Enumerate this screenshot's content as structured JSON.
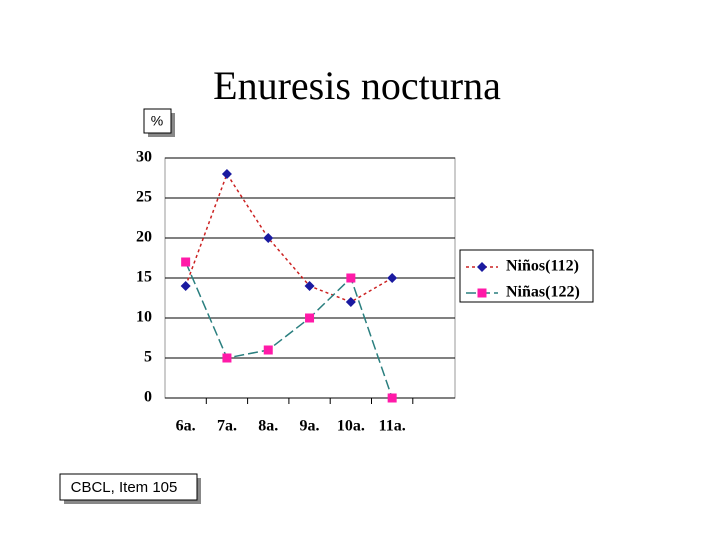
{
  "chart_data": {
    "type": "line",
    "title": "Enuresis nocturna",
    "ylabel": "%",
    "note": "CBCL, Item 105",
    "categories": [
      "6a.",
      "7a.",
      "8a.",
      "9a.",
      "10a.",
      "11a."
    ],
    "series": [
      {
        "name": "Niños(112)",
        "color": "#cc2222",
        "marker_color": "#1a1aa0",
        "marker": "diamond",
        "values": [
          14,
          28,
          20,
          14,
          12,
          15
        ]
      },
      {
        "name": "Niñas(122)",
        "color": "#2a7f7f",
        "marker_color": "#ff1aa8",
        "marker": "square",
        "values": [
          17,
          5,
          6,
          10,
          15,
          0
        ]
      }
    ],
    "ylim": [
      0,
      30
    ],
    "yticks": [
      0,
      5,
      10,
      15,
      20,
      25,
      30
    ],
    "grid": true
  }
}
